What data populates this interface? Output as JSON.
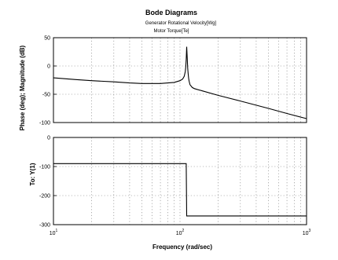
{
  "chart_data": [
    {
      "type": "line",
      "panel": "magnitude",
      "title": "Bode Diagrams",
      "subtitle_from": "Generator Rotational Velocity[Wg]",
      "subtitle_to": "Motor Torque[Te]",
      "ylabel": "Phase (deg); Magnitude (dB)",
      "xscale": "log",
      "xlim": [
        10,
        1000
      ],
      "ylim": [
        -100,
        50
      ],
      "yticks": [
        "50",
        "0",
        "-50",
        "-100"
      ],
      "grid": true,
      "series": [
        {
          "x": [
            10,
            15,
            20,
            30,
            40,
            50,
            60,
            70,
            80,
            90,
            100,
            105,
            108,
            110,
            111,
            112,
            113,
            114,
            115,
            116,
            117,
            118,
            120,
            125,
            130,
            150,
            200,
            300,
            500,
            700,
            1000
          ],
          "y": [
            -21,
            -24,
            -26,
            -28,
            -30,
            -31,
            -31,
            -31,
            -30,
            -29,
            -26,
            -23,
            -18,
            -10,
            -2,
            12,
            34,
            14,
            -4,
            -14,
            -22,
            -27,
            -33,
            -38,
            -40,
            -44,
            -52,
            -62,
            -75,
            -84,
            -93
          ]
        }
      ]
    },
    {
      "type": "line",
      "panel": "phase",
      "ylabel": "To: Y(1)",
      "xlabel": "Frequency (rad/sec)",
      "xscale": "log",
      "xlim": [
        10,
        1000
      ],
      "ylim": [
        -300,
        0
      ],
      "yticks": [
        "0",
        "-100",
        "-200",
        "-300"
      ],
      "xticks": [
        "10",
        "10",
        "10"
      ],
      "xtick_exponents": [
        "1",
        "2",
        "3"
      ],
      "grid": true,
      "series": [
        {
          "x": [
            10,
            112,
            113,
            1000
          ],
          "y": [
            -90,
            -90,
            -270,
            -270
          ]
        }
      ]
    }
  ]
}
